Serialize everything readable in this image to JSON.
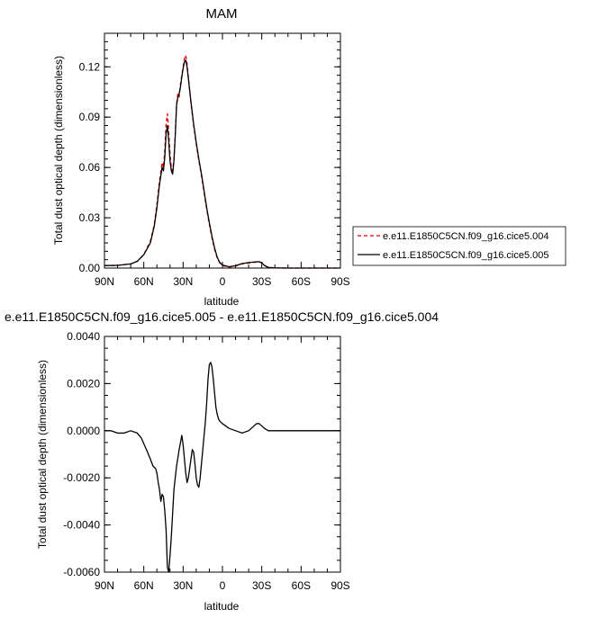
{
  "chart_data": [
    {
      "type": "line",
      "title": "MAM",
      "xlabel": "latitude",
      "ylabel": "Total dust optical depth (dimensionless)",
      "xlim": [
        90,
        -90
      ],
      "ylim": [
        0,
        0.14
      ],
      "x_ticks": [
        90,
        60,
        30,
        0,
        -30,
        -60,
        -90
      ],
      "x_tick_labels": [
        "90N",
        "60N",
        "30N",
        "0",
        "30S",
        "60S",
        "90S"
      ],
      "y_ticks": [
        0,
        0.03,
        0.06,
        0.09,
        0.12
      ],
      "y_tick_labels": [
        "0.00",
        "0.03",
        "0.06",
        "0.09",
        "0.12"
      ],
      "legend_position": "right",
      "x": [
        90,
        80,
        70,
        65,
        60,
        55,
        52,
        50,
        48,
        46,
        45,
        44,
        43,
        42,
        41,
        40,
        39,
        38,
        37,
        36,
        35,
        34,
        33,
        32,
        31,
        30,
        29,
        28,
        27,
        26,
        25,
        24,
        22,
        20,
        18,
        16,
        14,
        12,
        10,
        8,
        6,
        4,
        2,
        0,
        -5,
        -10,
        -15,
        -20,
        -25,
        -28,
        -30,
        -32,
        -35,
        -40,
        -50,
        -60,
        -70,
        -80,
        -90
      ],
      "series": [
        {
          "name": "e.e11.E1850C5CN.f09_g16.cice5.004",
          "color": "#e00000",
          "dash": "dashed",
          "values": [
            0.0015,
            0.0016,
            0.0025,
            0.004,
            0.008,
            0.016,
            0.026,
            0.038,
            0.052,
            0.063,
            0.06,
            0.07,
            0.086,
            0.092,
            0.082,
            0.068,
            0.06,
            0.058,
            0.065,
            0.08,
            0.098,
            0.104,
            0.102,
            0.11,
            0.115,
            0.12,
            0.125,
            0.127,
            0.122,
            0.114,
            0.106,
            0.098,
            0.085,
            0.074,
            0.064,
            0.055,
            0.045,
            0.035,
            0.026,
            0.018,
            0.011,
            0.006,
            0.003,
            0.0015,
            0.0005,
            0.0012,
            0.0025,
            0.003,
            0.0035,
            0.0037,
            0.003,
            0.0015,
            0.0003,
            0.0001,
            0.0,
            0.0,
            0.0,
            0.0,
            0.0
          ]
        },
        {
          "name": "e.e11.E1850C5CN.f09_g16.cice5.005",
          "color": "#000000",
          "dash": "solid",
          "values": [
            0.0015,
            0.0016,
            0.0025,
            0.004,
            0.008,
            0.015,
            0.025,
            0.036,
            0.05,
            0.06,
            0.058,
            0.066,
            0.08,
            0.085,
            0.076,
            0.064,
            0.058,
            0.056,
            0.064,
            0.079,
            0.097,
            0.102,
            0.104,
            0.108,
            0.114,
            0.119,
            0.123,
            0.124,
            0.12,
            0.113,
            0.106,
            0.099,
            0.086,
            0.075,
            0.065,
            0.056,
            0.046,
            0.036,
            0.027,
            0.019,
            0.012,
            0.0065,
            0.0032,
            0.0018,
            0.0008,
            0.0014,
            0.0027,
            0.0033,
            0.0037,
            0.0038,
            0.0032,
            0.0016,
            0.0004,
            0.0001,
            0.0,
            0.0,
            0.0,
            0.0,
            0.0
          ]
        }
      ]
    },
    {
      "type": "line",
      "title": "e.e11.E1850C5CN.f09_g16.cice5.005 - e.e11.E1850C5CN.f09_g16.cice5.004",
      "xlabel": "latitude",
      "ylabel": "Total dust optical depth (dimensionless)",
      "xlim": [
        90,
        -90
      ],
      "ylim": [
        -0.006,
        0.004
      ],
      "x_ticks": [
        90,
        60,
        30,
        0,
        -30,
        -60,
        -90
      ],
      "x_tick_labels": [
        "90N",
        "60N",
        "30N",
        "0",
        "30S",
        "60S",
        "90S"
      ],
      "y_ticks": [
        -0.006,
        -0.004,
        -0.002,
        0.0,
        0.002,
        0.004
      ],
      "y_tick_labels": [
        "-0.0060",
        "-0.0040",
        "-0.0020",
        "0.0000",
        "0.0020",
        "0.0040"
      ],
      "x": [
        90,
        85,
        80,
        75,
        70,
        65,
        62,
        58,
        55,
        53,
        51,
        50,
        49,
        48,
        47,
        46,
        45,
        44,
        43,
        42,
        41,
        40,
        39,
        38,
        37,
        35,
        33,
        31,
        30,
        29,
        28,
        27,
        26,
        24,
        23,
        22,
        21,
        20,
        19,
        18,
        17,
        16,
        15,
        14,
        13,
        12,
        11,
        10,
        9,
        8,
        7,
        6,
        5,
        4,
        3,
        2,
        0,
        -5,
        -10,
        -15,
        -20,
        -22,
        -24,
        -26,
        -28,
        -30,
        -32,
        -35,
        -40,
        -50,
        -60,
        -70,
        -80,
        -90
      ],
      "series": [
        {
          "name": "",
          "color": "#000000",
          "dash": "solid",
          "values": [
            0.0,
            0.0,
            -0.0001,
            -0.0001,
            0.0,
            -0.0001,
            -0.0003,
            -0.0008,
            -0.0012,
            -0.0015,
            -0.0016,
            -0.0018,
            -0.0022,
            -0.0025,
            -0.003,
            -0.0027,
            -0.0028,
            -0.0034,
            -0.0042,
            -0.0058,
            -0.006,
            -0.0053,
            -0.0045,
            -0.0035,
            -0.0025,
            -0.0015,
            -0.0008,
            -0.0002,
            -0.0006,
            -0.0012,
            -0.0018,
            -0.0022,
            -0.002,
            -0.0012,
            -0.0008,
            -0.0009,
            -0.0014,
            -0.002,
            -0.0023,
            -0.0024,
            -0.002,
            -0.0014,
            -0.0008,
            -0.0002,
            0.0004,
            0.0012,
            0.0022,
            0.0028,
            0.0029,
            0.0027,
            0.0022,
            0.0016,
            0.001,
            0.0007,
            0.0005,
            0.0004,
            0.0003,
            0.0001,
            0.0,
            -0.0001,
            0.0,
            0.0001,
            0.0002,
            0.0003,
            0.0003,
            0.0002,
            0.0001,
            0.0,
            0.0,
            0.0,
            0.0,
            0.0,
            0.0,
            0.0
          ]
        }
      ]
    }
  ]
}
